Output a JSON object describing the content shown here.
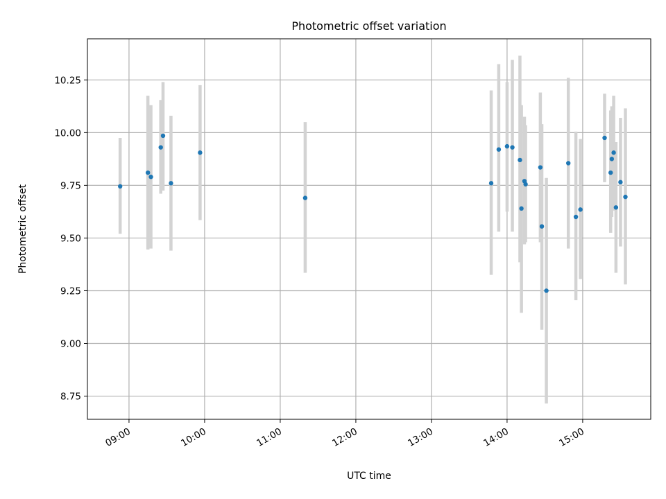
{
  "chart_data": {
    "type": "scatter",
    "title": "Photometric offset variation",
    "xlabel": "UTC time",
    "ylabel": "Photometric offset",
    "x_unit": "hours (UTC)",
    "xlim": [
      8.45,
      15.9
    ],
    "ylim": [
      8.64,
      10.445
    ],
    "xticks": [
      {
        "value": 9,
        "label": "09:00"
      },
      {
        "value": 10,
        "label": "10:00"
      },
      {
        "value": 11,
        "label": "11:00"
      },
      {
        "value": 12,
        "label": "12:00"
      },
      {
        "value": 13,
        "label": "13:00"
      },
      {
        "value": 14,
        "label": "14:00"
      },
      {
        "value": 15,
        "label": "15:00"
      }
    ],
    "yticks": [
      {
        "value": 8.75,
        "label": "8.75"
      },
      {
        "value": 9.0,
        "label": "9.00"
      },
      {
        "value": 9.25,
        "label": "9.25"
      },
      {
        "value": 9.5,
        "label": "9.50"
      },
      {
        "value": 9.75,
        "label": "9.75"
      },
      {
        "value": 10.0,
        "label": "10.00"
      },
      {
        "value": 10.25,
        "label": "10.25"
      }
    ],
    "grid": true,
    "marker_color": "#1f77b4",
    "errorbar_color": "#d3d3d3",
    "points": [
      {
        "x": 8.883,
        "y": 9.745,
        "lo": 9.52,
        "hi": 9.975
      },
      {
        "x": 9.25,
        "y": 9.81,
        "lo": 9.445,
        "hi": 10.175
      },
      {
        "x": 9.29,
        "y": 9.79,
        "lo": 9.45,
        "hi": 10.13
      },
      {
        "x": 9.42,
        "y": 9.93,
        "lo": 9.71,
        "hi": 10.155
      },
      {
        "x": 9.45,
        "y": 9.985,
        "lo": 9.725,
        "hi": 10.24
      },
      {
        "x": 9.555,
        "y": 9.76,
        "lo": 9.44,
        "hi": 10.08
      },
      {
        "x": 9.94,
        "y": 9.905,
        "lo": 9.585,
        "hi": 10.225
      },
      {
        "x": 11.33,
        "y": 9.69,
        "lo": 9.335,
        "hi": 10.05
      },
      {
        "x": 13.79,
        "y": 9.76,
        "lo": 9.325,
        "hi": 10.2
      },
      {
        "x": 13.89,
        "y": 9.92,
        "lo": 9.53,
        "hi": 10.325
      },
      {
        "x": 14.0,
        "y": 9.935,
        "lo": 9.625,
        "hi": 10.24
      },
      {
        "x": 14.07,
        "y": 9.93,
        "lo": 9.53,
        "hi": 10.345
      },
      {
        "x": 14.17,
        "y": 9.87,
        "lo": 9.385,
        "hi": 10.365
      },
      {
        "x": 14.19,
        "y": 9.64,
        "lo": 9.145,
        "hi": 10.13
      },
      {
        "x": 14.23,
        "y": 9.77,
        "lo": 9.47,
        "hi": 10.075
      },
      {
        "x": 14.245,
        "y": 9.755,
        "lo": 9.48,
        "hi": 10.035
      },
      {
        "x": 14.44,
        "y": 9.835,
        "lo": 9.48,
        "hi": 10.19
      },
      {
        "x": 14.46,
        "y": 9.555,
        "lo": 9.065,
        "hi": 10.04
      },
      {
        "x": 14.52,
        "y": 9.25,
        "lo": 8.715,
        "hi": 9.785
      },
      {
        "x": 14.81,
        "y": 9.855,
        "lo": 9.45,
        "hi": 10.26
      },
      {
        "x": 14.91,
        "y": 9.6,
        "lo": 9.205,
        "hi": 10.005
      },
      {
        "x": 14.97,
        "y": 9.635,
        "lo": 9.305,
        "hi": 9.97
      },
      {
        "x": 15.29,
        "y": 9.975,
        "lo": 9.765,
        "hi": 10.185
      },
      {
        "x": 15.37,
        "y": 9.81,
        "lo": 9.525,
        "hi": 10.105
      },
      {
        "x": 15.385,
        "y": 9.875,
        "lo": 9.6,
        "hi": 10.125
      },
      {
        "x": 15.41,
        "y": 9.905,
        "lo": 9.63,
        "hi": 10.175
      },
      {
        "x": 15.44,
        "y": 9.645,
        "lo": 9.335,
        "hi": 9.955
      },
      {
        "x": 15.5,
        "y": 9.765,
        "lo": 9.46,
        "hi": 10.07
      },
      {
        "x": 15.565,
        "y": 9.695,
        "lo": 9.28,
        "hi": 10.115
      }
    ]
  }
}
